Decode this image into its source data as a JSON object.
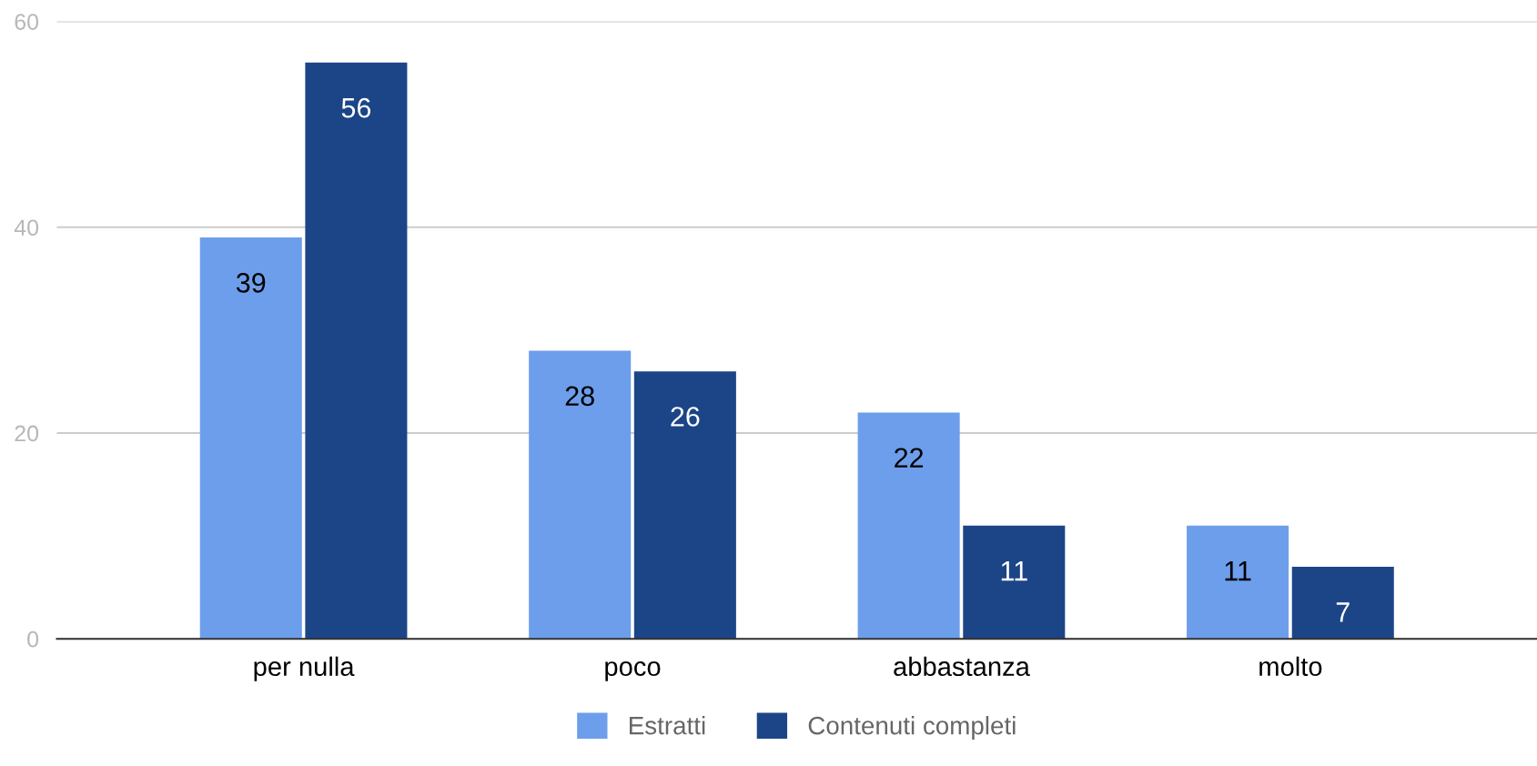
{
  "chart_data": {
    "type": "bar",
    "categories": [
      "per nulla",
      "poco",
      "abbastanza",
      "molto"
    ],
    "series": [
      {
        "name": "Estratti",
        "color": "#6d9eeb",
        "values": [
          39,
          28,
          22,
          11
        ]
      },
      {
        "name": "Contenuti completi",
        "color": "#1c4587",
        "values": [
          56,
          26,
          11,
          7
        ]
      }
    ],
    "ylim": [
      0,
      60
    ],
    "yticks": [
      0,
      20,
      40,
      60
    ],
    "grid": "y",
    "legend": "bottom",
    "data_labels": true
  }
}
